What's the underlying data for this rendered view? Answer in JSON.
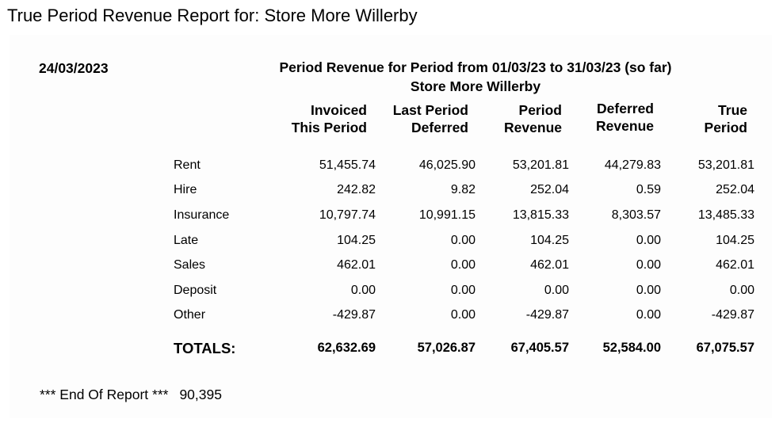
{
  "page_title": "True Period Revenue Report for: Store More Willerby",
  "report": {
    "date": "24/03/2023",
    "heading_line1": "Period Revenue for Period from 01/03/23 to 31/03/23 (so far)",
    "heading_line2": "Store More Willerby"
  },
  "columns": [
    {
      "line1": "Invoiced",
      "line2": "This Period"
    },
    {
      "line1": "Last Period",
      "line2": "Deferred"
    },
    {
      "line1": "Period",
      "line2": "Revenue"
    },
    {
      "line1": "Deferred",
      "line2": "Revenue"
    },
    {
      "line1": "True",
      "line2": "Period"
    }
  ],
  "rows": [
    {
      "label": "Rent",
      "values": [
        "51,455.74",
        "46,025.90",
        "53,201.81",
        "44,279.83",
        "53,201.81"
      ]
    },
    {
      "label": "Hire",
      "values": [
        "242.82",
        "9.82",
        "252.04",
        "0.59",
        "252.04"
      ]
    },
    {
      "label": "Insurance",
      "values": [
        "10,797.74",
        "10,991.15",
        "13,815.33",
        "8,303.57",
        "13,485.33"
      ]
    },
    {
      "label": "Late",
      "values": [
        "104.25",
        "0.00",
        "104.25",
        "0.00",
        "104.25"
      ]
    },
    {
      "label": "Sales",
      "values": [
        "462.01",
        "0.00",
        "462.01",
        "0.00",
        "462.01"
      ]
    },
    {
      "label": "Deposit",
      "values": [
        "0.00",
        "0.00",
        "0.00",
        "0.00",
        "0.00"
      ]
    },
    {
      "label": "Other",
      "values": [
        "-429.87",
        "0.00",
        "-429.87",
        "0.00",
        "-429.87"
      ]
    }
  ],
  "totals": {
    "label": "TOTALS:",
    "values": [
      "62,632.69",
      "57,026.87",
      "67,405.57",
      "52,584.00",
      "67,075.57"
    ]
  },
  "footer": {
    "end_text": "*** End Of Report ***",
    "code": "90,395"
  }
}
